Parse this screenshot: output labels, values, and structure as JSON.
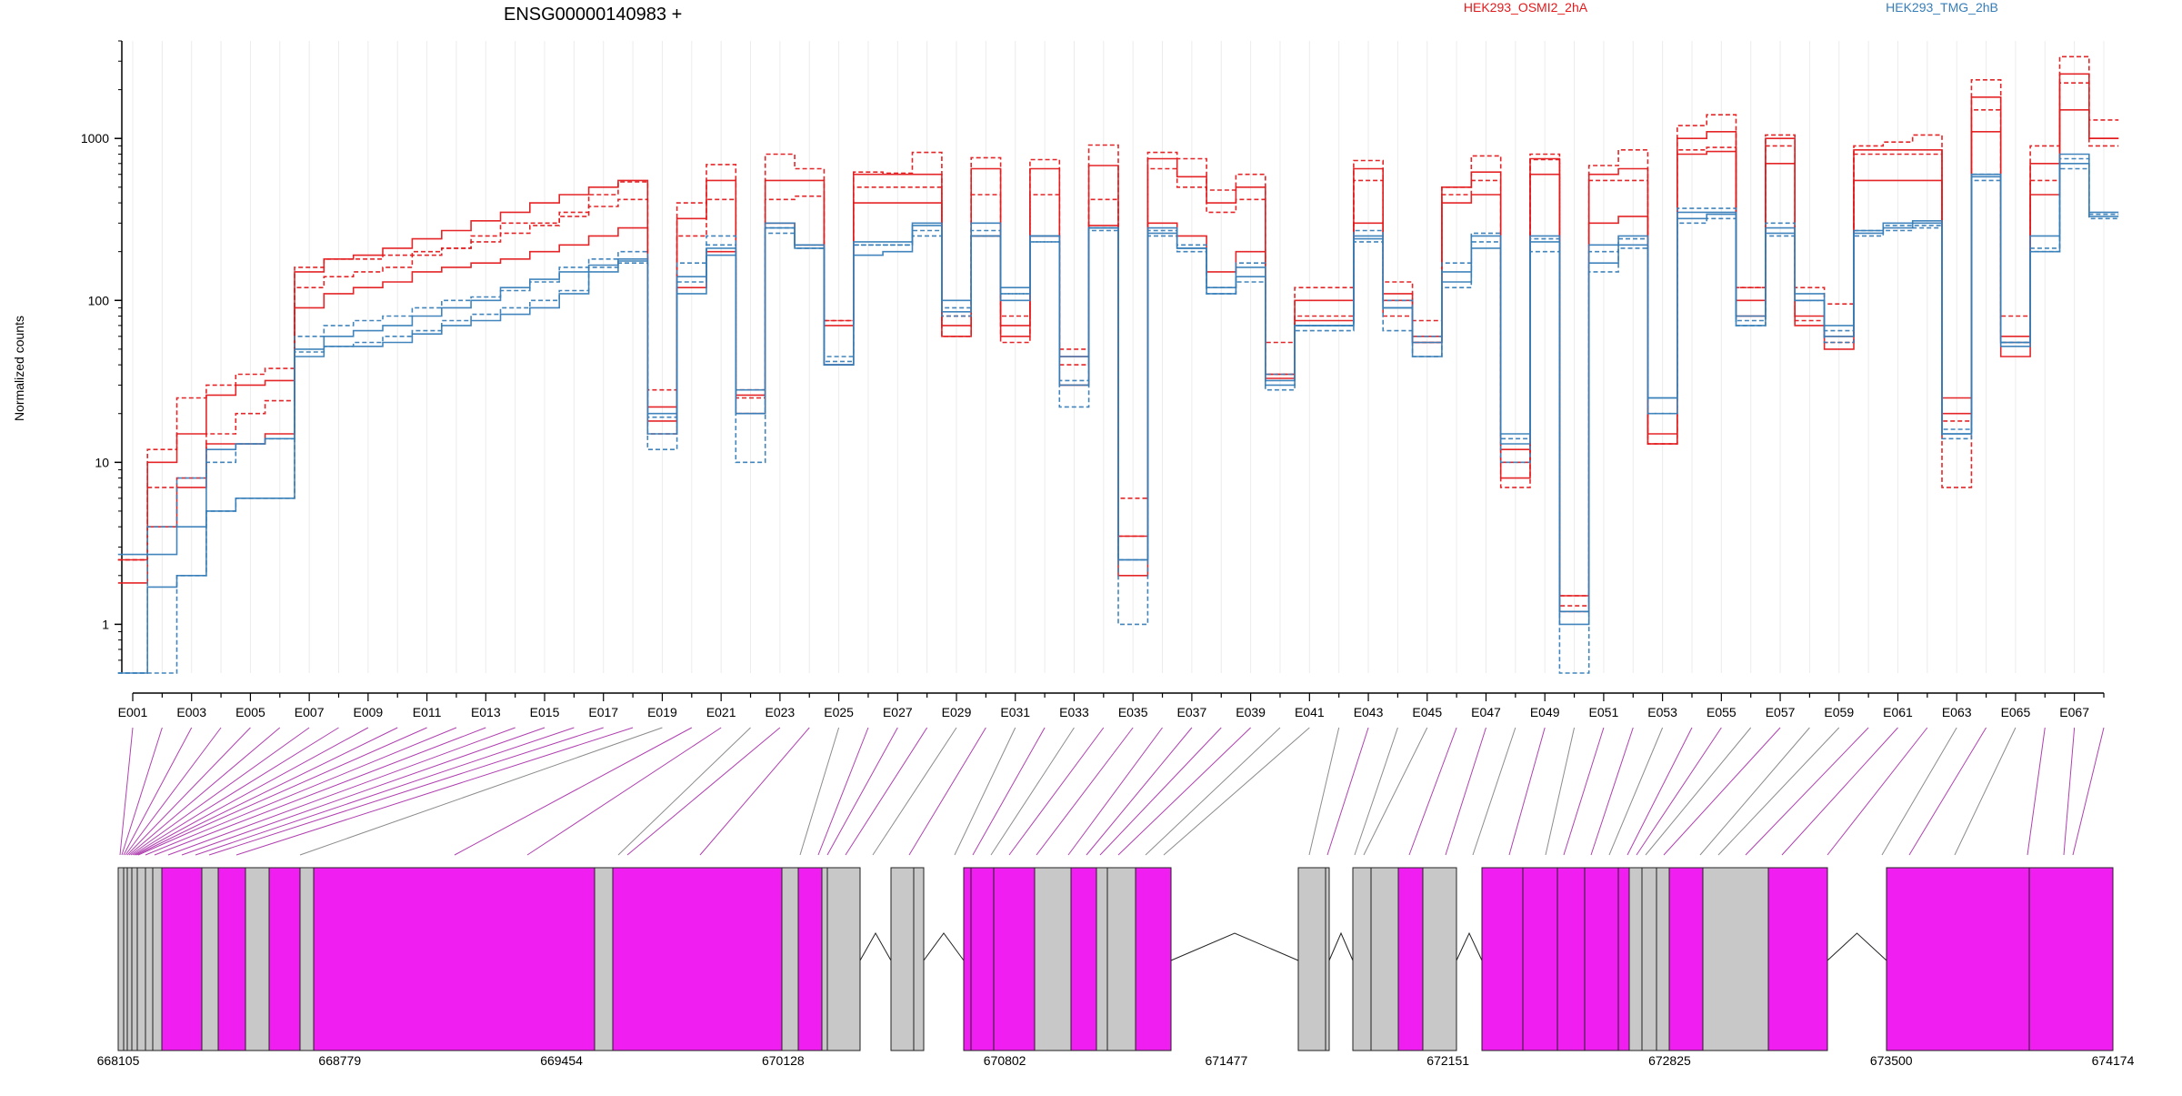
{
  "chart_data": {
    "type": "line",
    "title": "ENSG00000140983 +",
    "ylabel": "Normalized counts",
    "y_scale": "log",
    "ylim": [
      0.5,
      4000
    ],
    "y_ticks": [
      1,
      10,
      100,
      1000
    ],
    "y_tick_labels": [
      "1",
      "10",
      "100",
      "1000"
    ],
    "x_tick_labels": [
      "E001",
      "E003",
      "E005",
      "E007",
      "E009",
      "E011",
      "E013",
      "E015",
      "E017",
      "E019",
      "E021",
      "E023",
      "E025",
      "E027",
      "E029",
      "E031",
      "E033",
      "E035",
      "E037",
      "E039",
      "E041",
      "E043",
      "E045",
      "E047",
      "E049",
      "E051",
      "E053",
      "E055",
      "E057",
      "E059",
      "E061",
      "E063",
      "E065",
      "E067"
    ],
    "legend": [
      {
        "name": "HEK293_OSMI2_2hA",
        "color": "#e31a1c"
      },
      {
        "name": "HEK293_TMG_2hB",
        "color": "#377eb8"
      }
    ],
    "groups": [
      {
        "name": "HEK293_OSMI2_2hA",
        "color": "#e31a1c",
        "replicates": [
          [
            2.5,
            4,
            7,
            13,
            13,
            15,
            90,
            110,
            120,
            130,
            150,
            160,
            170,
            180,
            200,
            220,
            250,
            280,
            18,
            120,
            200,
            20,
            300,
            220,
            40,
            400,
            400,
            400,
            60,
            250,
            60,
            250,
            30,
            290,
            2,
            300,
            250,
            150,
            200,
            33,
            75,
            75,
            300,
            100,
            55,
            400,
            450,
            8,
            600,
            1.2,
            300,
            330,
            13,
            800,
            830,
            100,
            700,
            80,
            50,
            550,
            550,
            550,
            20,
            1100,
            45,
            450,
            1500,
            1000
          ],
          [
            2.5,
            7,
            8,
            15,
            20,
            24,
            120,
            140,
            150,
            160,
            190,
            210,
            230,
            260,
            290,
            330,
            380,
            420,
            15,
            250,
            420,
            25,
            420,
            440,
            75,
            500,
            500,
            500,
            80,
            450,
            80,
            450,
            40,
            420,
            3.5,
            650,
            500,
            350,
            420,
            35,
            80,
            80,
            550,
            80,
            55,
            450,
            550,
            10,
            800,
            1.5,
            550,
            550,
            13,
            850,
            880,
            120,
            900,
            75,
            55,
            800,
            800,
            800,
            18,
            1500,
            55,
            550,
            2200,
            900
          ],
          [
            1.8,
            10,
            15,
            26,
            30,
            32,
            150,
            180,
            190,
            210,
            240,
            270,
            310,
            350,
            400,
            450,
            500,
            550,
            22,
            320,
            550,
            26,
            550,
            550,
            70,
            600,
            600,
            600,
            70,
            650,
            70,
            650,
            45,
            680,
            3.5,
            750,
            580,
            400,
            500,
            35,
            100,
            100,
            650,
            110,
            60,
            500,
            620,
            12,
            750,
            1.5,
            600,
            650,
            15,
            1000,
            1100,
            80,
            1000,
            70,
            60,
            850,
            850,
            850,
            25,
            1800,
            60,
            700,
            2500,
            1000
          ],
          [
            2.5,
            12,
            25,
            30,
            35,
            38,
            160,
            180,
            180,
            190,
            200,
            210,
            250,
            300,
            300,
            350,
            450,
            540,
            28,
            400,
            690,
            28,
            800,
            650,
            75,
            620,
            610,
            820,
            60,
            760,
            55,
            740,
            50,
            910,
            6,
            820,
            750,
            480,
            600,
            55,
            120,
            120,
            730,
            130,
            75,
            500,
            780,
            7,
            740,
            1.3,
            680,
            850,
            13,
            1200,
            1400,
            120,
            1050,
            120,
            95,
            900,
            950,
            1050,
            7,
            2300,
            80,
            900,
            3200,
            1300
          ]
        ]
      },
      {
        "name": "HEK293_TMG_2hB",
        "color": "#377eb8",
        "replicates": [
          [
            2.7,
            2.7,
            4,
            12,
            13,
            14,
            45,
            52,
            52,
            55,
            62,
            70,
            75,
            82,
            90,
            110,
            150,
            180,
            20,
            110,
            210,
            28,
            300,
            220,
            40,
            230,
            230,
            300,
            100,
            300,
            120,
            250,
            45,
            280,
            2.5,
            280,
            210,
            120,
            160,
            32,
            70,
            70,
            250,
            90,
            55,
            150,
            250,
            15,
            250,
            1.2,
            220,
            250,
            25,
            350,
            350,
            80,
            280,
            100,
            70,
            270,
            300,
            300,
            15,
            600,
            55,
            250,
            800,
            350
          ],
          [
            0.5,
            4,
            8,
            10,
            13,
            14,
            48,
            52,
            55,
            60,
            65,
            75,
            82,
            90,
            100,
            115,
            160,
            170,
            19,
            170,
            250,
            20,
            280,
            220,
            42,
            220,
            220,
            270,
            90,
            270,
            110,
            230,
            32,
            280,
            2.5,
            270,
            200,
            120,
            170,
            35,
            70,
            70,
            270,
            100,
            60,
            170,
            260,
            14,
            240,
            1.2,
            200,
            240,
            20,
            370,
            370,
            75,
            300,
            100,
            65,
            270,
            290,
            290,
            16,
            600,
            55,
            210,
            750,
            340
          ],
          [
            0.5,
            1.7,
            2,
            5,
            6,
            6,
            50,
            60,
            65,
            70,
            80,
            90,
            100,
            120,
            135,
            150,
            165,
            175,
            15,
            140,
            190,
            20,
            280,
            210,
            40,
            190,
            200,
            290,
            85,
            250,
            100,
            250,
            30,
            280,
            2.5,
            260,
            210,
            110,
            140,
            30,
            70,
            70,
            240,
            90,
            45,
            130,
            210,
            13,
            230,
            1.0,
            170,
            220,
            25,
            320,
            340,
            70,
            260,
            110,
            60,
            260,
            280,
            310,
            15,
            580,
            52,
            200,
            700,
            330
          ],
          [
            0.5,
            0.5,
            2,
            5,
            6,
            6,
            60,
            70,
            75,
            80,
            90,
            100,
            105,
            115,
            130,
            160,
            180,
            200,
            12,
            130,
            220,
            10,
            260,
            210,
            45,
            220,
            220,
            250,
            80,
            250,
            110,
            230,
            22,
            270,
            1,
            250,
            220,
            110,
            130,
            28,
            65,
            65,
            230,
            65,
            45,
            120,
            230,
            10,
            200,
            0.5,
            150,
            210,
            20,
            300,
            320,
            70,
            250,
            100,
            55,
            250,
            270,
            280,
            14,
            550,
            55,
            200,
            650,
            320
          ]
        ]
      }
    ],
    "gene_model": {
      "x_tick_labels": [
        "668105",
        "668779",
        "669454",
        "670128",
        "670802",
        "671477",
        "672151",
        "672825",
        "673500",
        "674174"
      ],
      "exon_colors": {
        "significant": "#f01ef0",
        "not_significant": "#c8c8c8"
      }
    }
  }
}
